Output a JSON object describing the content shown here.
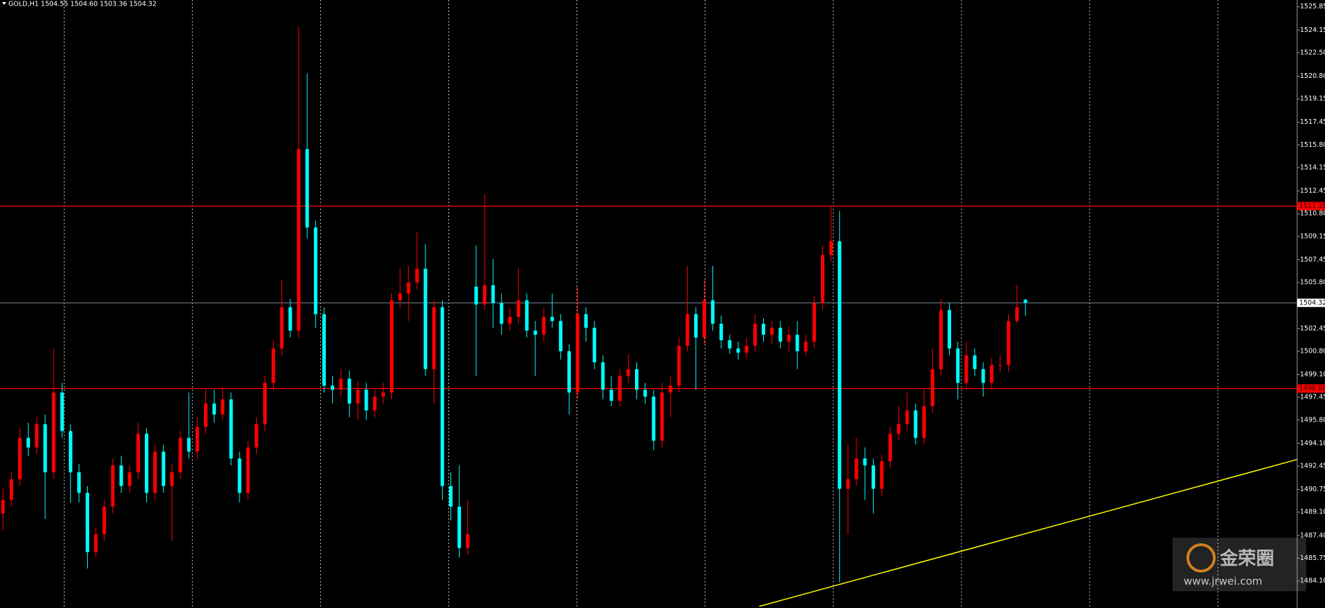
{
  "chart_data": {
    "type": "candlestick",
    "title": "GOLD,H1  1504.55 1504.60 1503.36 1504.32",
    "up_color": "#ff0000",
    "down_color": "#00ffff",
    "open": [
      1489.0,
      1490.0,
      1491.5,
      1494.5,
      1493.8,
      1495.5,
      1492.0,
      1497.8,
      1495.0,
      1492.0,
      1490.5,
      1486.2,
      1487.5,
      1489.5,
      1492.5,
      1491.0,
      1492.0,
      1494.8,
      1490.5,
      1493.5,
      1491.0,
      1492.0,
      1494.5,
      1493.5,
      1495.3,
      1497.0,
      1496.2,
      1497.3,
      1493.0,
      1490.5,
      1493.8,
      1495.5,
      1498.5,
      1501.0,
      1504.0,
      1502.3,
      1515.5,
      1509.8,
      1503.5,
      1498.3,
      1498.0,
      1498.8,
      1497.0,
      1498.0,
      1496.5,
      1497.5,
      1497.8,
      1504.5,
      1505.0,
      1505.8,
      1506.8,
      1499.5,
      1504.0,
      1491.0,
      1489.5,
      1486.5,
      1505.5,
      1504.2,
      1505.6,
      1504.3,
      1502.8,
      1503.3,
      1504.5,
      1502.3,
      1502.0,
      1503.3,
      1503.0,
      1500.8,
      1497.8,
      1503.5,
      1502.5,
      1500.0,
      1498.0,
      1497.2,
      1499.0,
      1499.5,
      1498.0,
      1497.5,
      1494.3,
      1497.8,
      1498.3,
      1501.2,
      1503.5,
      1501.8,
      1504.5,
      1502.8,
      1501.6,
      1501.0,
      1500.7,
      1501.2,
      1502.8,
      1502.0,
      1502.5,
      1501.5,
      1502.0,
      1500.8,
      1501.5,
      1504.3,
      1507.8,
      1508.8,
      1490.8,
      1491.5,
      1493.0,
      1492.5,
      1490.8,
      1492.8,
      1494.8,
      1495.5,
      1496.5,
      1494.5,
      1496.8,
      1499.5,
      1503.8,
      1501.0,
      1498.5,
      1500.5,
      1499.5,
      1498.5,
      1499.8,
      1499.8,
      1503.0,
      1504.55
    ],
    "high": [
      1490.8,
      1492.0,
      1495.2,
      1495.6,
      1496.0,
      1496.2,
      1501.0,
      1498.5,
      1495.5,
      1492.6,
      1491.0,
      1488.0,
      1490.0,
      1493.0,
      1493.2,
      1492.5,
      1495.6,
      1495.2,
      1494.0,
      1494.0,
      1492.6,
      1495.0,
      1497.8,
      1496.0,
      1498.0,
      1498.0,
      1498.2,
      1497.8,
      1493.5,
      1494.3,
      1496.0,
      1499.0,
      1501.6,
      1506.0,
      1504.6,
      1524.4,
      1521.0,
      1510.3,
      1504.0,
      1499.0,
      1499.5,
      1499.4,
      1498.6,
      1498.5,
      1498.0,
      1498.5,
      1505.0,
      1506.8,
      1507.0,
      1509.5,
      1508.6,
      1504.5,
      1504.5,
      1492.0,
      1492.5,
      1490.0,
      1508.5,
      1512.2,
      1507.5,
      1505.0,
      1504.0,
      1506.8,
      1505.0,
      1503.0,
      1504.0,
      1505.0,
      1503.5,
      1501.3,
      1505.5,
      1504.0,
      1503.0,
      1500.5,
      1499.0,
      1499.5,
      1500.6,
      1500.0,
      1498.5,
      1498.0,
      1498.5,
      1499.0,
      1501.8,
      1507.0,
      1504.0,
      1506.0,
      1507.0,
      1503.4,
      1502.0,
      1501.5,
      1501.8,
      1503.5,
      1503.2,
      1503.0,
      1503.0,
      1502.6,
      1503.0,
      1502.0,
      1504.8,
      1508.5,
      1511.3,
      1511.0,
      1494.0,
      1494.5,
      1493.8,
      1493.0,
      1493.3,
      1495.3,
      1496.8,
      1497.8,
      1497.0,
      1498.0,
      1501.0,
      1504.6,
      1504.3,
      1501.5,
      1501.5,
      1501.0,
      1500.0,
      1500.3,
      1500.5,
      1503.5,
      1505.6,
      1504.6
    ],
    "low": [
      1487.8,
      1489.5,
      1491.0,
      1493.2,
      1493.3,
      1488.6,
      1491.5,
      1494.5,
      1489.8,
      1489.8,
      1485.0,
      1485.8,
      1487.0,
      1489.0,
      1490.5,
      1490.5,
      1491.5,
      1489.8,
      1490.0,
      1490.5,
      1487.0,
      1491.5,
      1493.0,
      1493.0,
      1494.8,
      1495.6,
      1495.8,
      1492.5,
      1489.8,
      1490.0,
      1493.3,
      1495.0,
      1498.0,
      1500.5,
      1501.8,
      1501.8,
      1509.0,
      1502.5,
      1497.8,
      1497.0,
      1497.5,
      1496.0,
      1495.8,
      1495.8,
      1496.0,
      1497.0,
      1497.3,
      1504.0,
      1503.0,
      1505.3,
      1499.0,
      1497.0,
      1490.0,
      1488.5,
      1485.8,
      1486.0,
      1499.0,
      1503.8,
      1502.5,
      1502.0,
      1502.3,
      1502.8,
      1501.8,
      1499.0,
      1501.5,
      1502.5,
      1500.2,
      1496.2,
      1497.3,
      1501.5,
      1499.5,
      1497.3,
      1496.8,
      1496.8,
      1498.5,
      1497.3,
      1497.0,
      1493.6,
      1493.8,
      1496.0,
      1497.8,
      1500.8,
      1498.0,
      1501.3,
      1502.3,
      1501.0,
      1500.6,
      1500.2,
      1500.3,
      1500.8,
      1501.5,
      1501.3,
      1501.0,
      1500.8,
      1499.5,
      1500.5,
      1501.0,
      1503.8,
      1507.3,
      1484.0,
      1487.5,
      1491.0,
      1490.0,
      1489.0,
      1490.3,
      1492.3,
      1494.3,
      1495.0,
      1494.0,
      1494.0,
      1496.3,
      1499.0,
      1500.5,
      1497.3,
      1498.0,
      1499.0,
      1497.5,
      1498.0,
      1499.3,
      1499.3,
      1502.8,
      1503.36
    ],
    "close": [
      1490.0,
      1491.5,
      1494.5,
      1493.8,
      1495.5,
      1492.0,
      1497.8,
      1495.0,
      1492.0,
      1490.5,
      1486.2,
      1487.5,
      1489.5,
      1492.5,
      1491.0,
      1492.0,
      1494.8,
      1490.5,
      1493.5,
      1491.0,
      1492.0,
      1494.5,
      1493.5,
      1495.3,
      1497.0,
      1496.2,
      1497.3,
      1493.0,
      1490.5,
      1493.8,
      1495.5,
      1498.5,
      1501.0,
      1504.0,
      1502.3,
      1515.5,
      1509.8,
      1503.5,
      1498.3,
      1498.0,
      1498.8,
      1497.0,
      1498.0,
      1496.5,
      1497.5,
      1497.8,
      1504.5,
      1505.0,
      1505.8,
      1506.8,
      1499.5,
      1504.0,
      1491.0,
      1489.5,
      1486.5,
      1487.5,
      1504.2,
      1505.6,
      1504.3,
      1502.8,
      1503.3,
      1504.5,
      1502.3,
      1502.0,
      1503.3,
      1503.0,
      1500.8,
      1497.8,
      1503.5,
      1502.5,
      1500.0,
      1498.0,
      1497.2,
      1499.0,
      1499.5,
      1498.0,
      1497.5,
      1494.3,
      1497.8,
      1498.3,
      1501.2,
      1503.5,
      1501.8,
      1504.5,
      1502.8,
      1501.6,
      1501.0,
      1500.7,
      1501.2,
      1502.8,
      1502.0,
      1502.5,
      1501.5,
      1502.0,
      1500.8,
      1501.5,
      1504.3,
      1507.8,
      1508.8,
      1490.8,
      1491.5,
      1493.0,
      1492.5,
      1490.8,
      1492.8,
      1494.8,
      1495.5,
      1496.5,
      1494.5,
      1496.8,
      1499.5,
      1503.8,
      1501.0,
      1498.5,
      1500.5,
      1499.5,
      1498.5,
      1499.8,
      1499.8,
      1503.0,
      1504.0,
      1504.32
    ],
    "ylim": [
      1482.13,
      1526.34
    ],
    "yticks": [
      1525.85,
      1524.15,
      {
        "value": 1522.5,
        "label": "1522.50"
      },
      {
        "value": 1520.8,
        "label": "1520.80"
      },
      1519.15,
      1517.45,
      {
        "value": 1515.8,
        "label": "1515.80"
      },
      1514.15,
      1512.45,
      {
        "value": 1510.8,
        "label": "1510.80"
      },
      1509.15,
      1507.45,
      {
        "value": 1505.8,
        "label": "1505.80"
      },
      1502.45,
      {
        "value": 1500.8,
        "label": "1500.80"
      },
      {
        "value": 1499.1,
        "label": "1499.10"
      },
      1497.45,
      {
        "value": 1495.8,
        "label": "1495.80"
      },
      {
        "value": 1494.1,
        "label": "1494.10"
      },
      1492.45,
      1490.75,
      {
        "value": 1489.1,
        "label": "1489.10"
      },
      {
        "value": 1487.4,
        "label": "1487.40"
      },
      1485.75,
      {
        "value": 1484.1,
        "label": "1484.10"
      }
    ],
    "hlines": [
      {
        "value": 1511.35,
        "color": "#ff0000"
      },
      {
        "value": 1498.09,
        "color": "#ff0000"
      }
    ],
    "price_line_color": "#778899",
    "trendline": {
      "color": "#ffff00",
      "from": [
        89.5,
        1482.25
      ],
      "to": [
        153.2,
        1492.94
      ]
    },
    "watermark": {
      "name": "金荣圈",
      "url": "www.jrwei.com"
    }
  }
}
